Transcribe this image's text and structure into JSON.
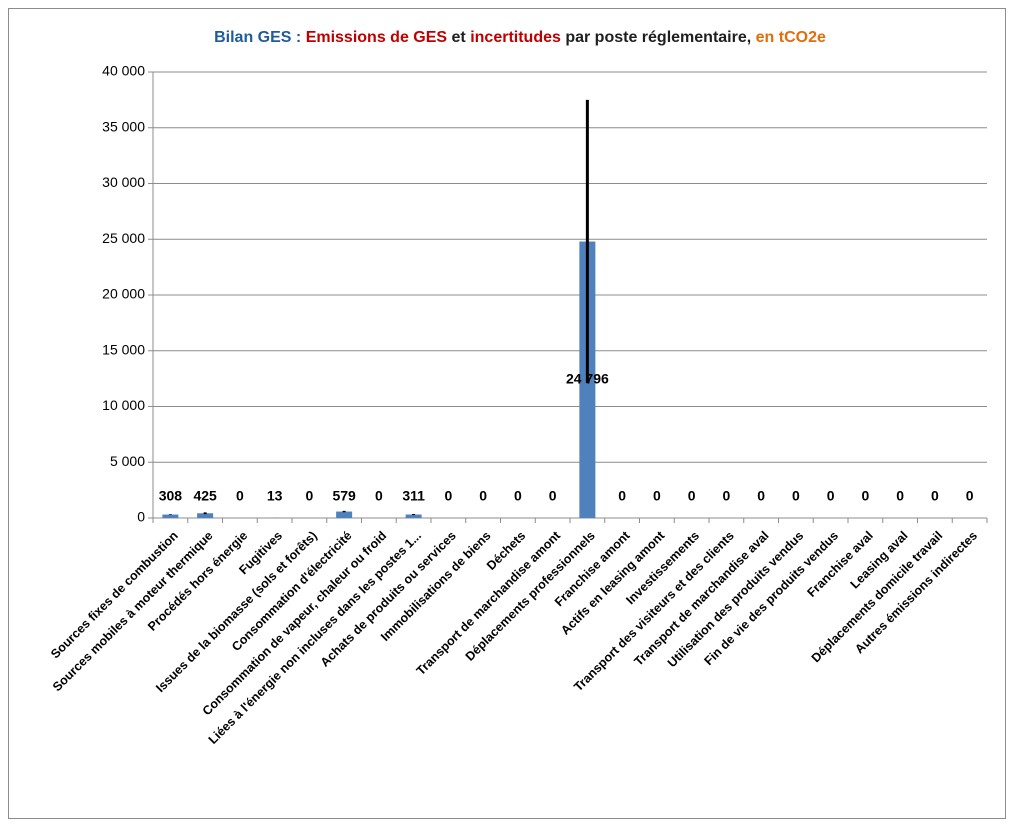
{
  "chart_data": {
    "type": "bar",
    "title": [
      {
        "text": "Bilan GES : ",
        "color": "#1f5c99"
      },
      {
        "text": "Emissions de GES",
        "color": "#c00000"
      },
      {
        "text": " et ",
        "color": "#1f1f1f"
      },
      {
        "text": "incertitudes",
        "color": "#c00000"
      },
      {
        "text": " par poste réglementaire, ",
        "color": "#1f1f1f"
      },
      {
        "text": "en tCO2e",
        "color": "#e46c0a"
      }
    ],
    "categories": [
      "Sources fixes de combustion",
      "Sources mobiles à moteur thermique",
      "Procédés hors énergie",
      "Fugitives",
      "Issues de la biomasse (sols et forêts)",
      "Consommation d'électricité",
      "Consommation de vapeur, chaleur ou froid",
      "Liées à l'énergie non incluses dans les postes 1...",
      "Achats de produits ou services",
      "Immobilisations de biens",
      "Déchets",
      "Transport de marchandise amont",
      "Déplacements professionnels",
      "Franchise amont",
      "Actifs en leasing amont",
      "Investissements",
      "Transport des visiteurs et des clients",
      "Transport de marchandise aval",
      "Utilisation des produits vendus",
      "Fin de vie des produits vendus",
      "Franchise aval",
      "Leasing aval",
      "Déplacements domicile travail",
      "Autres émissions indirectes"
    ],
    "values": [
      308,
      425,
      0,
      13,
      0,
      579,
      0,
      311,
      0,
      0,
      0,
      0,
      24796,
      0,
      0,
      0,
      0,
      0,
      0,
      0,
      0,
      0,
      0,
      0
    ],
    "value_labels": [
      "308",
      "425",
      "0",
      "13",
      "0",
      "579",
      "0",
      "311",
      "0",
      "0",
      "0",
      "0",
      "24 796",
      "0",
      "0",
      "0",
      "0",
      "0",
      "0",
      "0",
      "0",
      "0",
      "0",
      "0"
    ],
    "errors": [
      30,
      80,
      0,
      2,
      0,
      60,
      0,
      50,
      0,
      0,
      0,
      0,
      12700,
      0,
      0,
      0,
      0,
      0,
      0,
      0,
      0,
      0,
      0,
      0
    ],
    "color": "#4f81bd",
    "error_color": "#000000",
    "ylim": [
      0,
      40000
    ],
    "yticks": [
      0,
      {
        "value": 5000,
        "label": "5 000"
      },
      {
        "value": 10000,
        "label": "10 000"
      },
      {
        "value": 15000,
        "label": "15 000"
      },
      {
        "value": 20000,
        "label": "20 000"
      },
      {
        "value": 25000,
        "label": "25 000"
      },
      {
        "value": 30000,
        "label": "30 000"
      },
      {
        "value": 35000,
        "label": "35 000"
      },
      {
        "value": 40000,
        "label": "40 000"
      }
    ],
    "grid": true
  }
}
